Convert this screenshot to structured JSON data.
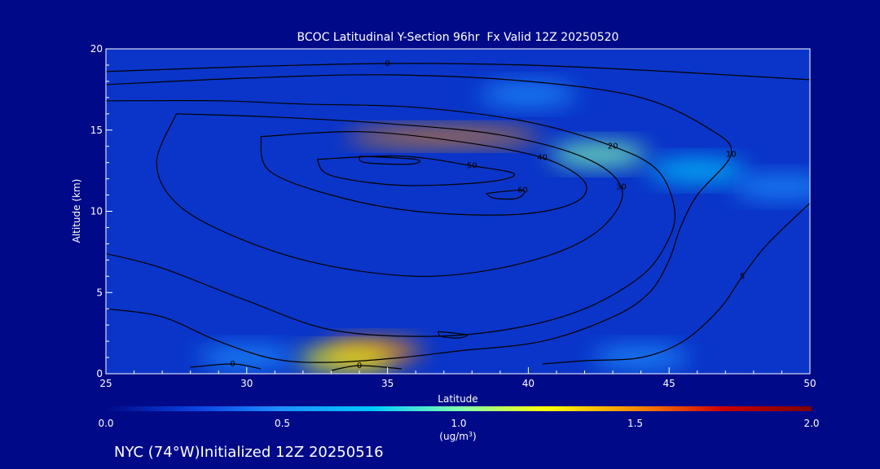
{
  "chart_data": {
    "type": "heatmap",
    "title": "BCOC Latitudinal Y-Section 96hr  Fx Valid 12Z 20250520",
    "xlabel": "Latitude",
    "ylabel": "Altitude (km)",
    "xlim": [
      25,
      50
    ],
    "ylim": [
      0,
      20
    ],
    "x_ticks": [
      "25",
      "30",
      "35",
      "40",
      "45",
      "50"
    ],
    "y_ticks": [
      "0",
      "5",
      "10",
      "15",
      "20"
    ],
    "colorbar": {
      "min": 0.0,
      "max": 2.0,
      "ticks": [
        "0.0",
        "0.5",
        "1.0",
        "1.5",
        "2.0"
      ],
      "unit_label": "(ug/m",
      "unit_sup": "3",
      "unit_close": ")",
      "colors": [
        "#000a88",
        "#0a40e0",
        "#1e90ff",
        "#00c8ff",
        "#7fffb0",
        "#ffff00",
        "#ff8c00",
        "#cc0000",
        "#7a0000"
      ]
    },
    "shading_features": [
      {
        "lat": 40,
        "alt": 17.2,
        "value": 0.55
      },
      {
        "lat": 37,
        "alt": 14.6,
        "value": 1.55
      },
      {
        "lat": 42.5,
        "alt": 13.5,
        "value": 1.1
      },
      {
        "lat": 34.5,
        "alt": 1.4,
        "value": 1.6
      },
      {
        "lat": 33.5,
        "alt": 0.9,
        "value": 1.3
      },
      {
        "lat": 46,
        "alt": 12.5,
        "value": 0.7
      },
      {
        "lat": 49,
        "alt": 11.5,
        "value": 0.5
      },
      {
        "lat": 30,
        "alt": 1.0,
        "value": 0.6
      },
      {
        "lat": 44,
        "alt": 1.0,
        "value": 0.5
      }
    ],
    "contours": [
      {
        "label": "0",
        "points": [
          [
            25,
            18.6
          ],
          [
            30,
            18.9
          ],
          [
            35,
            19.1
          ],
          [
            40,
            19.0
          ],
          [
            45,
            18.6
          ],
          [
            48,
            18.3
          ],
          [
            50,
            18.1
          ]
        ]
      },
      {
        "label": "10",
        "points": [
          [
            25,
            17.8
          ],
          [
            30,
            18.2
          ],
          [
            35,
            18.4
          ],
          [
            40,
            18.0
          ],
          [
            44,
            17.0
          ],
          [
            46.5,
            15.0
          ],
          [
            47.2,
            13.5
          ],
          [
            46,
            11.0
          ],
          [
            45.4,
            9.0
          ],
          [
            45.0,
            7.0
          ],
          [
            44.3,
            5.0
          ],
          [
            43.0,
            3.5
          ],
          [
            40.5,
            2.0
          ],
          [
            37.5,
            1.4
          ],
          [
            35.5,
            1.0
          ],
          [
            33.0,
            0.7
          ],
          [
            31.0,
            0.9
          ],
          [
            29.0,
            2.0
          ],
          [
            27.0,
            3.5
          ],
          [
            25.0,
            4.0
          ]
        ]
      },
      {
        "label": "20",
        "points": [
          [
            25,
            16.8
          ],
          [
            29,
            16.8
          ],
          [
            32,
            16.6
          ],
          [
            36,
            16.4
          ],
          [
            40,
            15.5
          ],
          [
            43,
            14.0
          ],
          [
            44.6,
            12.5
          ],
          [
            45.2,
            10.0
          ],
          [
            44.9,
            8.0
          ],
          [
            44.0,
            6.0
          ],
          [
            42.0,
            4.0
          ],
          [
            39.5,
            2.8
          ],
          [
            36.5,
            2.3
          ],
          [
            33,
            2.7
          ],
          [
            30,
            4.5
          ],
          [
            27,
            6.5
          ],
          [
            25,
            7.4
          ]
        ]
      },
      {
        "label": "30",
        "points": [
          [
            27.5,
            16.0
          ],
          [
            31,
            15.8
          ],
          [
            35,
            15.4
          ],
          [
            39,
            14.7
          ],
          [
            42,
            13.3
          ],
          [
            43.3,
            11.5
          ],
          [
            42.9,
            9.5
          ],
          [
            41.5,
            7.8
          ],
          [
            39.0,
            6.5
          ],
          [
            36.0,
            6.0
          ],
          [
            32.5,
            6.8
          ],
          [
            29.5,
            8.5
          ],
          [
            27.5,
            10.5
          ],
          [
            26.8,
            13.0
          ],
          [
            27.5,
            16.0
          ]
        ]
      },
      {
        "label": "40",
        "points": [
          [
            30.5,
            14.6
          ],
          [
            34,
            14.9
          ],
          [
            37.5,
            14.3
          ],
          [
            40.5,
            13.3
          ],
          [
            42.0,
            11.8
          ],
          [
            41.6,
            10.5
          ],
          [
            39.5,
            9.8
          ],
          [
            36,
            10.0
          ],
          [
            33,
            11.0
          ],
          [
            30.8,
            12.5
          ],
          [
            30.5,
            14.6
          ]
        ]
      },
      {
        "label": "50",
        "points": [
          [
            32.5,
            13.2
          ],
          [
            35.5,
            13.4
          ],
          [
            38,
            12.8
          ],
          [
            39.5,
            12.3
          ],
          [
            38.5,
            11.8
          ],
          [
            35.5,
            11.6
          ],
          [
            33,
            12.2
          ],
          [
            32.5,
            13.2
          ]
        ]
      },
      {
        "label": "",
        "points": [
          [
            34,
            13.4
          ],
          [
            36,
            13.2
          ],
          [
            35.8,
            12.9
          ],
          [
            34.2,
            13.0
          ],
          [
            34,
            13.4
          ]
        ]
      },
      {
        "label": "60",
        "points": [
          [
            38.5,
            11.1
          ],
          [
            39.8,
            11.3
          ],
          [
            39.6,
            10.8
          ],
          [
            38.8,
            10.8
          ],
          [
            38.5,
            11.1
          ]
        ]
      },
      {
        "label": "",
        "points": [
          [
            36.8,
            2.6
          ],
          [
            37.8,
            2.4
          ],
          [
            37.5,
            2.2
          ],
          [
            36.9,
            2.3
          ],
          [
            36.8,
            2.6
          ]
        ]
      },
      {
        "label": "0",
        "points": [
          [
            28,
            0.4
          ],
          [
            29.5,
            0.6
          ],
          [
            30.5,
            0.3
          ]
        ]
      },
      {
        "label": "0",
        "points": [
          [
            33,
            0.2
          ],
          [
            34,
            0.5
          ],
          [
            35.5,
            0.3
          ]
        ]
      },
      {
        "label": "5",
        "points": [
          [
            50,
            10.5
          ],
          [
            48.5,
            8.0
          ],
          [
            47.6,
            6.0
          ],
          [
            46.8,
            4.0
          ],
          [
            45.5,
            2.0
          ],
          [
            44.0,
            1.0
          ],
          [
            42.0,
            0.8
          ],
          [
            40.5,
            0.6
          ]
        ]
      }
    ]
  },
  "footer": {
    "text": "NYC (74°W)Initialized 12Z 20250516"
  }
}
